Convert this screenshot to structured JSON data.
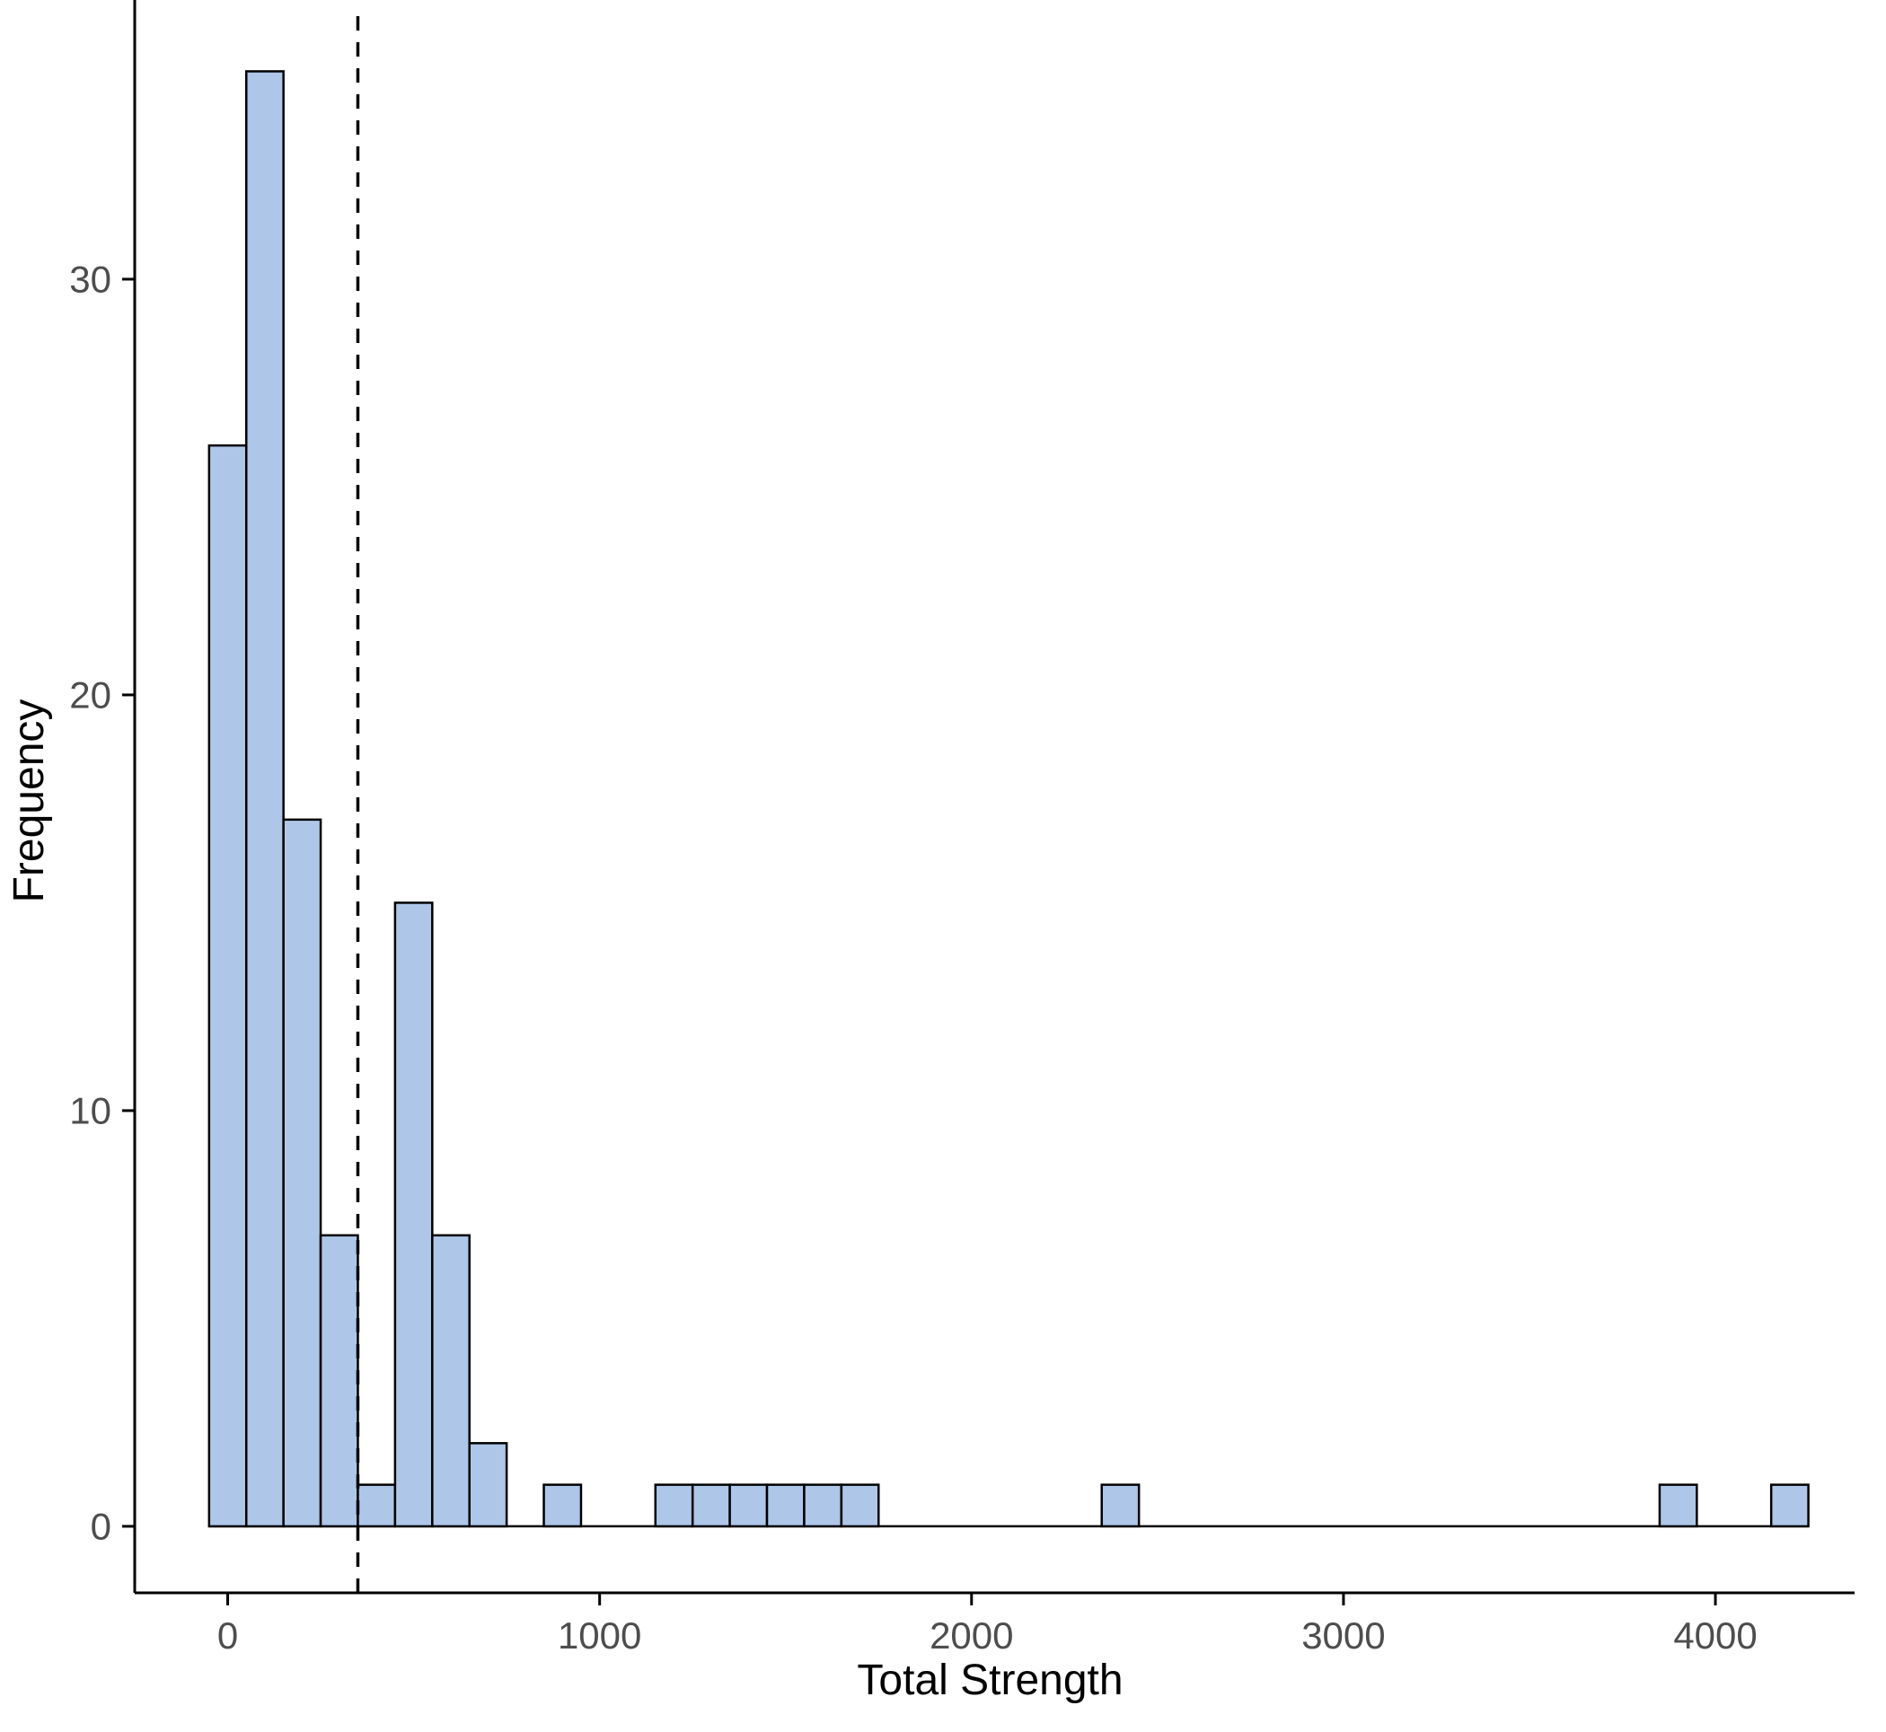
{
  "chart_data": {
    "type": "bar",
    "subtype": "histogram",
    "title": "",
    "xlabel": "Total Strength",
    "ylabel": "Frequency",
    "bin_width": 100,
    "bars": [
      {
        "x": 0,
        "count": 26
      },
      {
        "x": 100,
        "count": 35
      },
      {
        "x": 200,
        "count": 17
      },
      {
        "x": 300,
        "count": 7
      },
      {
        "x": 400,
        "count": 1
      },
      {
        "x": 500,
        "count": 15
      },
      {
        "x": 600,
        "count": 7
      },
      {
        "x": 700,
        "count": 2
      },
      {
        "x": 900,
        "count": 1
      },
      {
        "x": 1200,
        "count": 1
      },
      {
        "x": 1300,
        "count": 1
      },
      {
        "x": 1400,
        "count": 1
      },
      {
        "x": 1500,
        "count": 1
      },
      {
        "x": 1600,
        "count": 1
      },
      {
        "x": 1700,
        "count": 1
      },
      {
        "x": 2400,
        "count": 1
      },
      {
        "x": 3900,
        "count": 1
      },
      {
        "x": 4200,
        "count": 1
      }
    ],
    "reference_line": {
      "x": 350,
      "orientation": "vertical",
      "style": "dashed",
      "color": "#000000"
    },
    "x_ticks": [
      0,
      1000,
      2000,
      3000,
      4000
    ],
    "y_ticks": [
      0,
      10,
      20,
      30
    ],
    "xlim": [
      -250,
      4350
    ],
    "ylim": [
      -1.6,
      36.5
    ],
    "baseline_extent": [
      -50,
      4250
    ],
    "grid": false,
    "legend": null,
    "colors": {
      "bar_fill": "#aec6e8",
      "bar_stroke": "#000000",
      "axis_line": "#000000",
      "tick_label": "#4d4d4d",
      "axis_title": "#000000",
      "background": "#ffffff"
    }
  }
}
